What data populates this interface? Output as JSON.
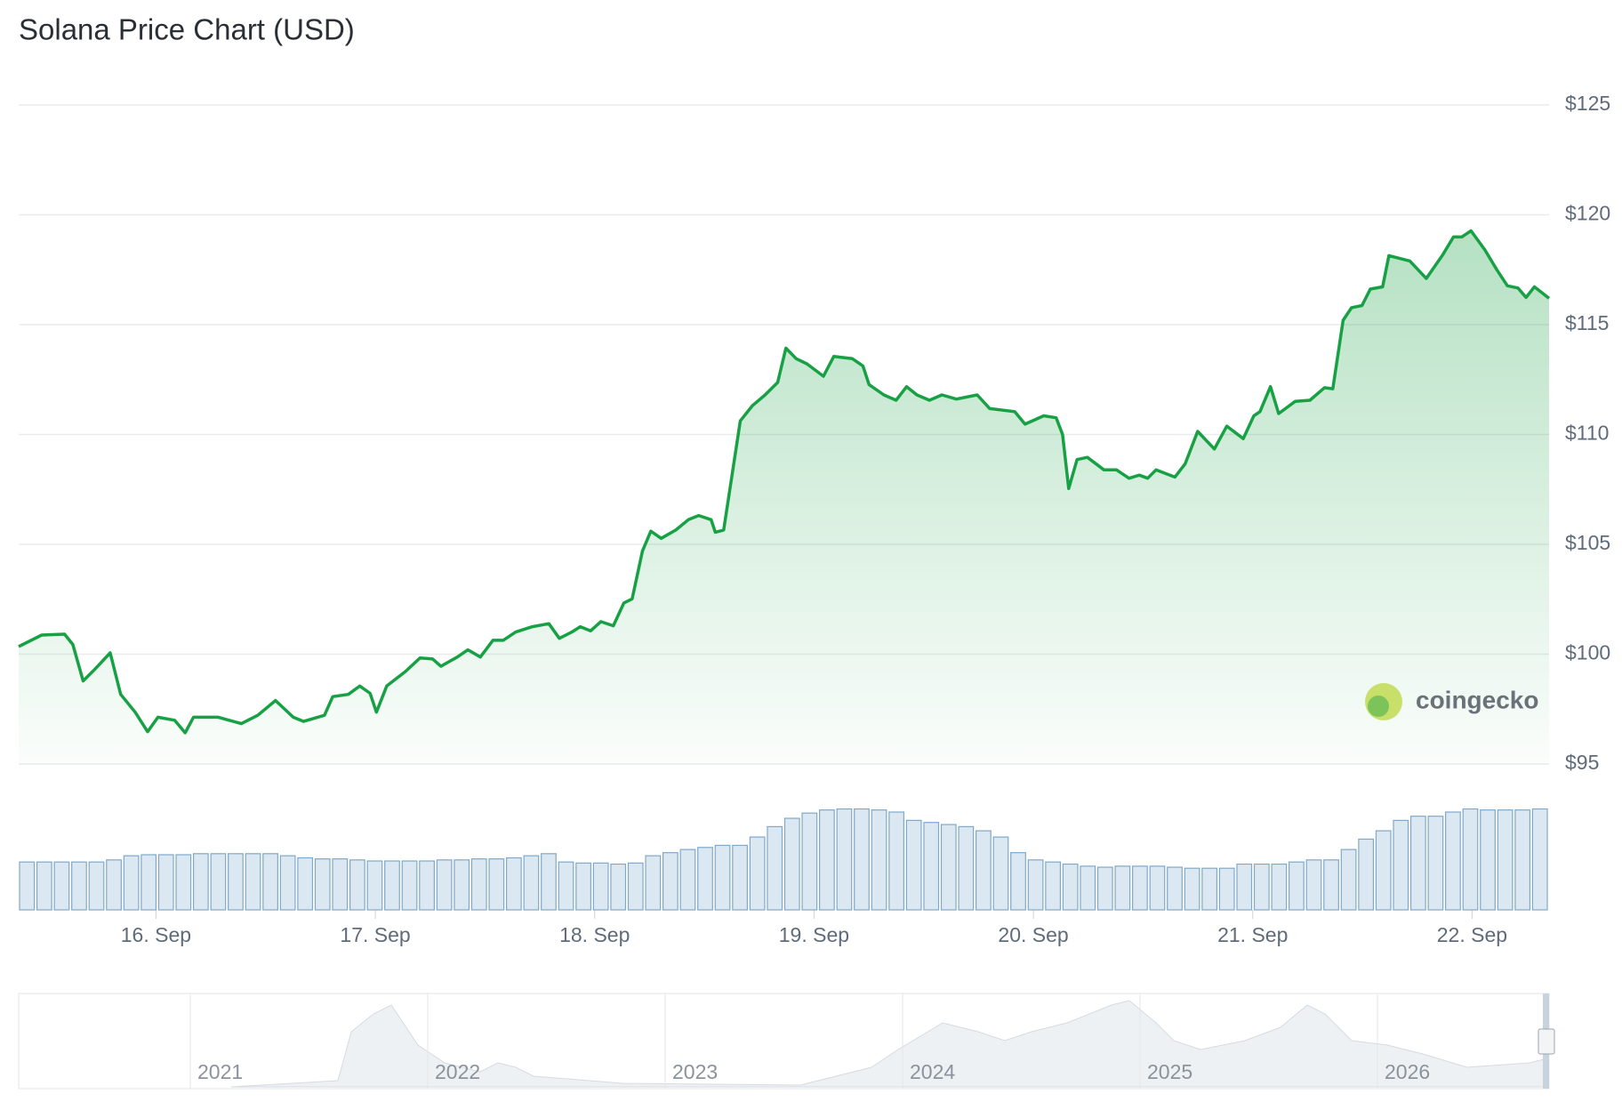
{
  "chart_data": {
    "type": "area",
    "title": "Solana Price Chart (USD)",
    "watermark": "coingecko",
    "x": [
      15.374,
      15.479,
      15.583,
      15.621,
      15.668,
      15.716,
      15.791,
      15.839,
      15.905,
      15.962,
      16.009,
      16.085,
      16.133,
      16.171,
      16.284,
      16.389,
      16.464,
      16.545,
      16.626,
      16.673,
      16.768,
      16.806,
      16.877,
      16.929,
      16.976,
      17.005,
      17.052,
      17.137,
      17.204,
      17.261,
      17.299,
      17.374,
      17.422,
      17.479,
      17.536,
      17.583,
      17.64,
      17.716,
      17.791,
      17.839,
      17.896,
      17.934,
      17.981,
      18.028,
      18.085,
      18.133,
      18.171,
      18.218,
      18.256,
      18.303,
      18.37,
      18.427,
      18.474,
      18.531,
      18.55,
      18.588,
      18.664,
      18.72,
      18.777,
      18.834,
      18.872,
      18.919,
      18.967,
      19.043,
      19.09,
      19.175,
      19.223,
      19.251,
      19.318,
      19.374,
      19.422,
      19.469,
      19.526,
      19.583,
      19.649,
      19.744,
      19.801,
      19.915,
      19.962,
      20.047,
      20.104,
      20.133,
      20.161,
      20.199,
      20.246,
      20.322,
      20.379,
      20.436,
      20.483,
      20.521,
      20.559,
      20.645,
      20.692,
      20.749,
      20.825,
      20.882,
      20.957,
      21.005,
      21.033,
      21.081,
      21.118,
      21.194,
      21.261,
      21.327,
      21.365,
      21.412,
      21.45,
      21.498,
      21.536,
      21.592,
      21.621,
      21.716,
      21.791,
      21.867,
      21.915,
      21.953,
      21.995,
      22.057,
      22.114,
      22.161,
      22.209,
      22.246,
      22.284,
      22.351
    ],
    "series": [
      {
        "color": "#18a144",
        "values": [
          100.35,
          100.87,
          100.91,
          100.44,
          98.78,
          99.26,
          100.06,
          98.17,
          97.36,
          96.47,
          97.13,
          96.99,
          96.42,
          97.13,
          97.13,
          96.84,
          97.22,
          97.89,
          97.13,
          96.94,
          97.22,
          98.07,
          98.17,
          98.55,
          98.22,
          97.36,
          98.55,
          99.21,
          99.83,
          99.78,
          99.45,
          99.87,
          100.2,
          99.87,
          100.63,
          100.63,
          101.01,
          101.25,
          101.39,
          100.72,
          101.01,
          101.25,
          101.06,
          101.48,
          101.29,
          102.33,
          102.52,
          104.7,
          105.6,
          105.27,
          105.65,
          106.12,
          106.31,
          106.12,
          105.55,
          105.65,
          110.62,
          111.32,
          111.8,
          112.37,
          113.93,
          113.45,
          113.22,
          112.65,
          113.55,
          113.45,
          113.12,
          112.27,
          111.8,
          111.56,
          112.18,
          111.8,
          111.56,
          111.8,
          111.61,
          111.8,
          111.18,
          111.04,
          110.47,
          110.85,
          110.76,
          110.0,
          107.54,
          108.86,
          108.96,
          108.39,
          108.39,
          108.01,
          108.15,
          108.01,
          108.39,
          108.06,
          108.67,
          110.14,
          109.34,
          110.38,
          109.81,
          110.85,
          111.04,
          112.18,
          110.95,
          111.51,
          111.56,
          112.13,
          112.08,
          115.2,
          115.77,
          115.87,
          116.62,
          116.72,
          118.14,
          117.9,
          117.1,
          118.19,
          118.99,
          118.99,
          119.27,
          118.42,
          117.48,
          116.77,
          116.67,
          116.24,
          116.72,
          116.2
        ]
      }
    ],
    "volume": {
      "color": "#7fa8c9",
      "values": [
        46,
        46,
        46,
        46,
        46,
        48,
        52,
        53,
        53,
        53,
        54,
        54,
        54,
        54,
        54,
        52,
        50,
        49,
        49,
        48,
        47,
        47,
        47,
        47,
        48,
        48,
        49,
        49,
        50,
        52,
        54,
        46,
        45,
        45,
        44,
        45,
        52,
        55,
        58,
        60,
        62,
        62,
        70,
        80,
        88,
        93,
        96,
        97,
        97,
        96,
        94,
        86,
        84,
        82,
        80,
        76,
        70,
        55,
        48,
        46,
        44,
        42,
        41,
        42,
        42,
        42,
        41,
        40,
        40,
        40,
        44,
        44,
        44,
        46,
        48,
        48,
        58,
        68,
        76,
        86,
        90,
        90,
        94,
        97,
        96,
        96,
        96,
        97
      ]
    },
    "xlim": [
      15.374,
      22.351
    ],
    "xticks": [
      {
        "value": 16,
        "label": "16. Sep"
      },
      {
        "value": 17,
        "label": "17. Sep"
      },
      {
        "value": 18,
        "label": "18. Sep"
      },
      {
        "value": 19,
        "label": "19. Sep"
      },
      {
        "value": 20,
        "label": "20. Sep"
      },
      {
        "value": 21,
        "label": "21. Sep"
      },
      {
        "value": 22,
        "label": "22. Sep"
      }
    ],
    "ylim": [
      95,
      125
    ],
    "yticks": [
      {
        "value": 95,
        "label": "$95"
      },
      {
        "value": 100,
        "label": "$100"
      },
      {
        "value": 105,
        "label": "$105"
      },
      {
        "value": 110,
        "label": "$110"
      },
      {
        "value": 115,
        "label": "$115"
      },
      {
        "value": 120,
        "label": "$120"
      },
      {
        "value": 125,
        "label": "$125"
      }
    ],
    "grid": true,
    "navigator_years": [
      "2021",
      "2022",
      "2023",
      "2024",
      "2025",
      "2026"
    ]
  }
}
